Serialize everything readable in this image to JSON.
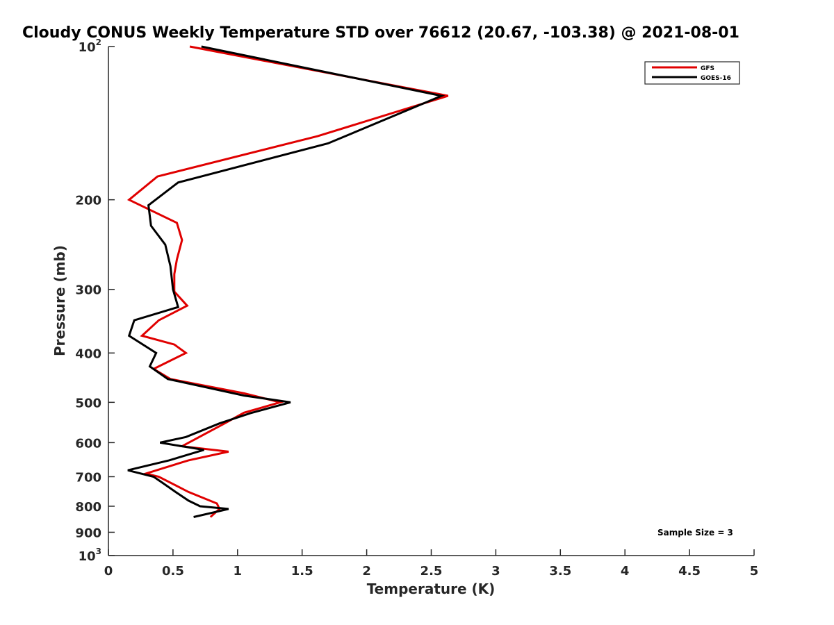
{
  "chart_data": {
    "type": "line",
    "title": "Cloudy CONUS Weekly Temperature STD over 76612 (20.67, -103.38) @ 2021-08-01",
    "xlabel": "Temperature (K)",
    "ylabel": "Pressure (mb)",
    "xlim": [
      0,
      5
    ],
    "ylim": [
      100,
      1000
    ],
    "yscale": "log",
    "y_reversed": true,
    "x_ticks": [
      0,
      0.5,
      1,
      1.5,
      2,
      2.5,
      3,
      3.5,
      4,
      4.5,
      5
    ],
    "x_tick_labels": [
      "0",
      "0.5",
      "1",
      "1.5",
      "2",
      "2.5",
      "3",
      "3.5",
      "4",
      "4.5",
      "5"
    ],
    "y_ticks": [
      100,
      200,
      300,
      400,
      500,
      600,
      700,
      800,
      900,
      1000
    ],
    "y_tick_labels": [
      {
        "base": "10",
        "exp": "2"
      },
      {
        "base": "200"
      },
      {
        "base": "300"
      },
      {
        "base": "400"
      },
      {
        "base": "500"
      },
      {
        "base": "600"
      },
      {
        "base": "700"
      },
      {
        "base": "800"
      },
      {
        "base": "900"
      },
      {
        "base": "10",
        "exp": "3"
      }
    ],
    "legend": {
      "position": "top-right"
    },
    "annotation": "Sample Size = 3",
    "series": [
      {
        "name": "GFS",
        "color": "#e00000",
        "x": [
          0.63,
          2.63,
          1.62,
          0.38,
          0.16,
          0.53,
          0.57,
          0.53,
          0.51,
          0.51,
          0.61,
          0.39,
          0.26,
          0.51,
          0.6,
          0.35,
          0.48,
          1.05,
          1.33,
          1.05,
          0.9,
          0.57,
          0.93,
          0.62,
          0.29,
          0.39,
          0.62,
          0.84,
          0.86,
          0.79
        ],
        "y": [
          100,
          125,
          150,
          180,
          200,
          222,
          240,
          262,
          280,
          303,
          323,
          345,
          370,
          385,
          400,
          430,
          450,
          480,
          500,
          524,
          550,
          610,
          625,
          650,
          690,
          700,
          750,
          790,
          810,
          840
        ]
      },
      {
        "name": "GOES-16",
        "color": "#000000",
        "x": [
          0.72,
          2.58,
          1.7,
          0.54,
          0.31,
          0.33,
          0.44,
          0.48,
          0.5,
          0.54,
          0.2,
          0.16,
          0.37,
          0.32,
          0.46,
          1.05,
          1.41,
          1.1,
          0.86,
          0.6,
          0.4,
          0.74,
          0.47,
          0.15,
          0.35,
          0.42,
          0.52,
          0.62,
          0.71,
          0.93,
          0.66
        ],
        "y": [
          100,
          125,
          155,
          185,
          205,
          225,
          245,
          270,
          300,
          325,
          345,
          370,
          400,
          425,
          450,
          485,
          500,
          525,
          550,
          585,
          600,
          620,
          650,
          680,
          700,
          720,
          750,
          780,
          800,
          810,
          840
        ]
      }
    ]
  }
}
